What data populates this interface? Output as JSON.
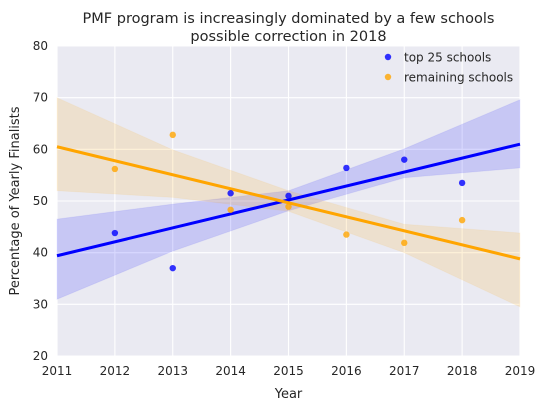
{
  "chart_data": {
    "type": "scatter",
    "title": "PMF program is increasingly dominated by a few schools",
    "subtitle": "possible correction in 2018",
    "xlabel": "Year",
    "ylabel": "Percentage of Yearly Finalists",
    "xlim": [
      2011,
      2019
    ],
    "ylim": [
      20,
      80
    ],
    "x_ticks": [
      2011,
      2012,
      2013,
      2014,
      2015,
      2016,
      2017,
      2018,
      2019
    ],
    "y_ticks": [
      20,
      30,
      40,
      50,
      60,
      70,
      80
    ],
    "grid": true,
    "legend_position": "top-right",
    "series": [
      {
        "name": "top 25 schools",
        "color": "#0000ff",
        "points": [
          {
            "x": 2012,
            "y": 43.8
          },
          {
            "x": 2013,
            "y": 37.0
          },
          {
            "x": 2014,
            "y": 51.5
          },
          {
            "x": 2015,
            "y": 51.0
          },
          {
            "x": 2016,
            "y": 56.4
          },
          {
            "x": 2017,
            "y": 58.0
          },
          {
            "x": 2018,
            "y": 53.5
          }
        ],
        "regression": {
          "x": [
            2011,
            2019
          ],
          "y": [
            39.4,
            61.0
          ]
        },
        "ci_band": {
          "x": [
            2011,
            2013,
            2015,
            2017,
            2019
          ],
          "lower": [
            31.0,
            40.3,
            48.1,
            54.5,
            56.4
          ],
          "upper": [
            46.5,
            49.4,
            52.0,
            60.1,
            69.6
          ]
        }
      },
      {
        "name": "remaining schools",
        "color": "#ffa500",
        "points": [
          {
            "x": 2012,
            "y": 56.2
          },
          {
            "x": 2013,
            "y": 62.8
          },
          {
            "x": 2014,
            "y": 48.3
          },
          {
            "x": 2015,
            "y": 48.9
          },
          {
            "x": 2016,
            "y": 43.5
          },
          {
            "x": 2017,
            "y": 41.9
          },
          {
            "x": 2018,
            "y": 46.3
          }
        ],
        "regression": {
          "x": [
            2011,
            2019
          ],
          "y": [
            60.5,
            38.8
          ]
        },
        "ci_band": {
          "x": [
            2011,
            2013,
            2015,
            2017,
            2019
          ],
          "lower": [
            52.0,
            50.7,
            48.0,
            40.0,
            29.5
          ],
          "upper": [
            70.0,
            59.9,
            52.0,
            45.5,
            43.8
          ]
        }
      }
    ]
  }
}
